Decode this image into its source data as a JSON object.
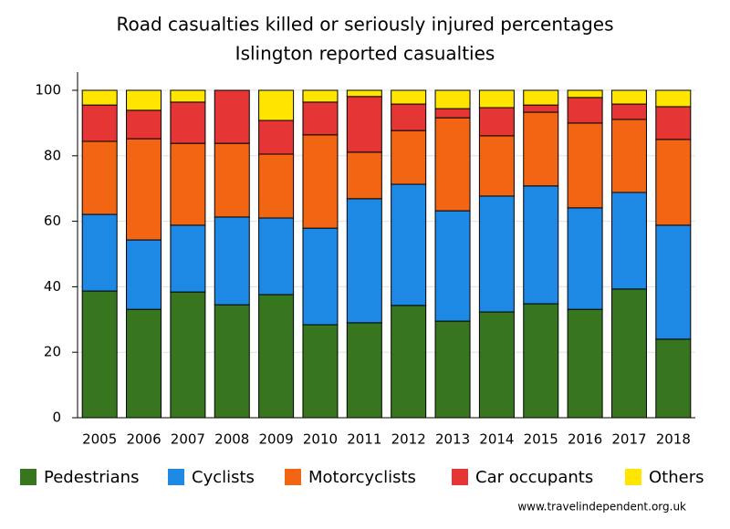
{
  "chart_data": {
    "type": "stacked-bar",
    "title": "Road casualties killed or seriously injured percentages",
    "subtitle": "Islington reported casualties",
    "categories": [
      "2005",
      "2006",
      "2007",
      "2008",
      "2009",
      "2010",
      "2011",
      "2012",
      "2013",
      "2014",
      "2015",
      "2016",
      "2017",
      "2018"
    ],
    "series": [
      {
        "name": "Pedestrians",
        "color": "#37761f",
        "values": [
          38.7,
          33.1,
          38.4,
          34.5,
          37.6,
          28.4,
          29.0,
          34.3,
          29.5,
          32.3,
          34.8,
          33.1,
          39.3,
          24.0
        ]
      },
      {
        "name": "Cyclists",
        "color": "#1e88e5",
        "values": [
          23.4,
          21.2,
          20.4,
          26.8,
          23.4,
          29.5,
          37.9,
          37.0,
          33.7,
          35.4,
          36.0,
          31.0,
          29.5,
          34.8
        ]
      },
      {
        "name": "Motorcyclists",
        "color": "#f26513",
        "values": [
          22.3,
          30.9,
          25.0,
          22.5,
          19.5,
          28.5,
          14.2,
          16.4,
          28.4,
          18.4,
          22.5,
          25.9,
          22.3,
          26.2
        ]
      },
      {
        "name": "Car occupants",
        "color": "#e53535",
        "values": [
          11.1,
          8.7,
          12.6,
          16.2,
          10.3,
          10.0,
          17.0,
          8.1,
          2.8,
          8.6,
          2.2,
          7.8,
          4.7,
          10.0
        ]
      },
      {
        "name": "Others",
        "color": "#ffe500",
        "values": [
          4.5,
          6.1,
          3.6,
          0,
          9.2,
          3.6,
          1.9,
          4.2,
          5.6,
          5.3,
          4.5,
          2.2,
          4.2,
          5.0
        ]
      }
    ],
    "ylim": [
      0,
      100
    ],
    "yticks": [
      0,
      20,
      40,
      60,
      80,
      100
    ],
    "grid": true,
    "legend": "bottom",
    "source": "www.travelindependent.org.uk"
  }
}
